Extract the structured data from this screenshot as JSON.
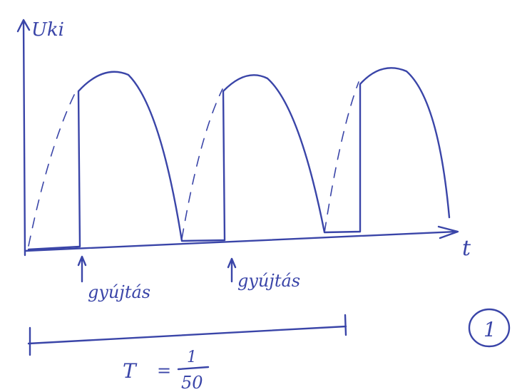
{
  "axes": {
    "y_label": "Uki",
    "x_label": "t"
  },
  "annotations": [
    {
      "label": "gyújtás"
    },
    {
      "label": "gyújtás"
    }
  ],
  "period": {
    "symbol": "T",
    "equals": "=",
    "numerator": "1",
    "denominator": "50"
  },
  "page_number": "1"
}
